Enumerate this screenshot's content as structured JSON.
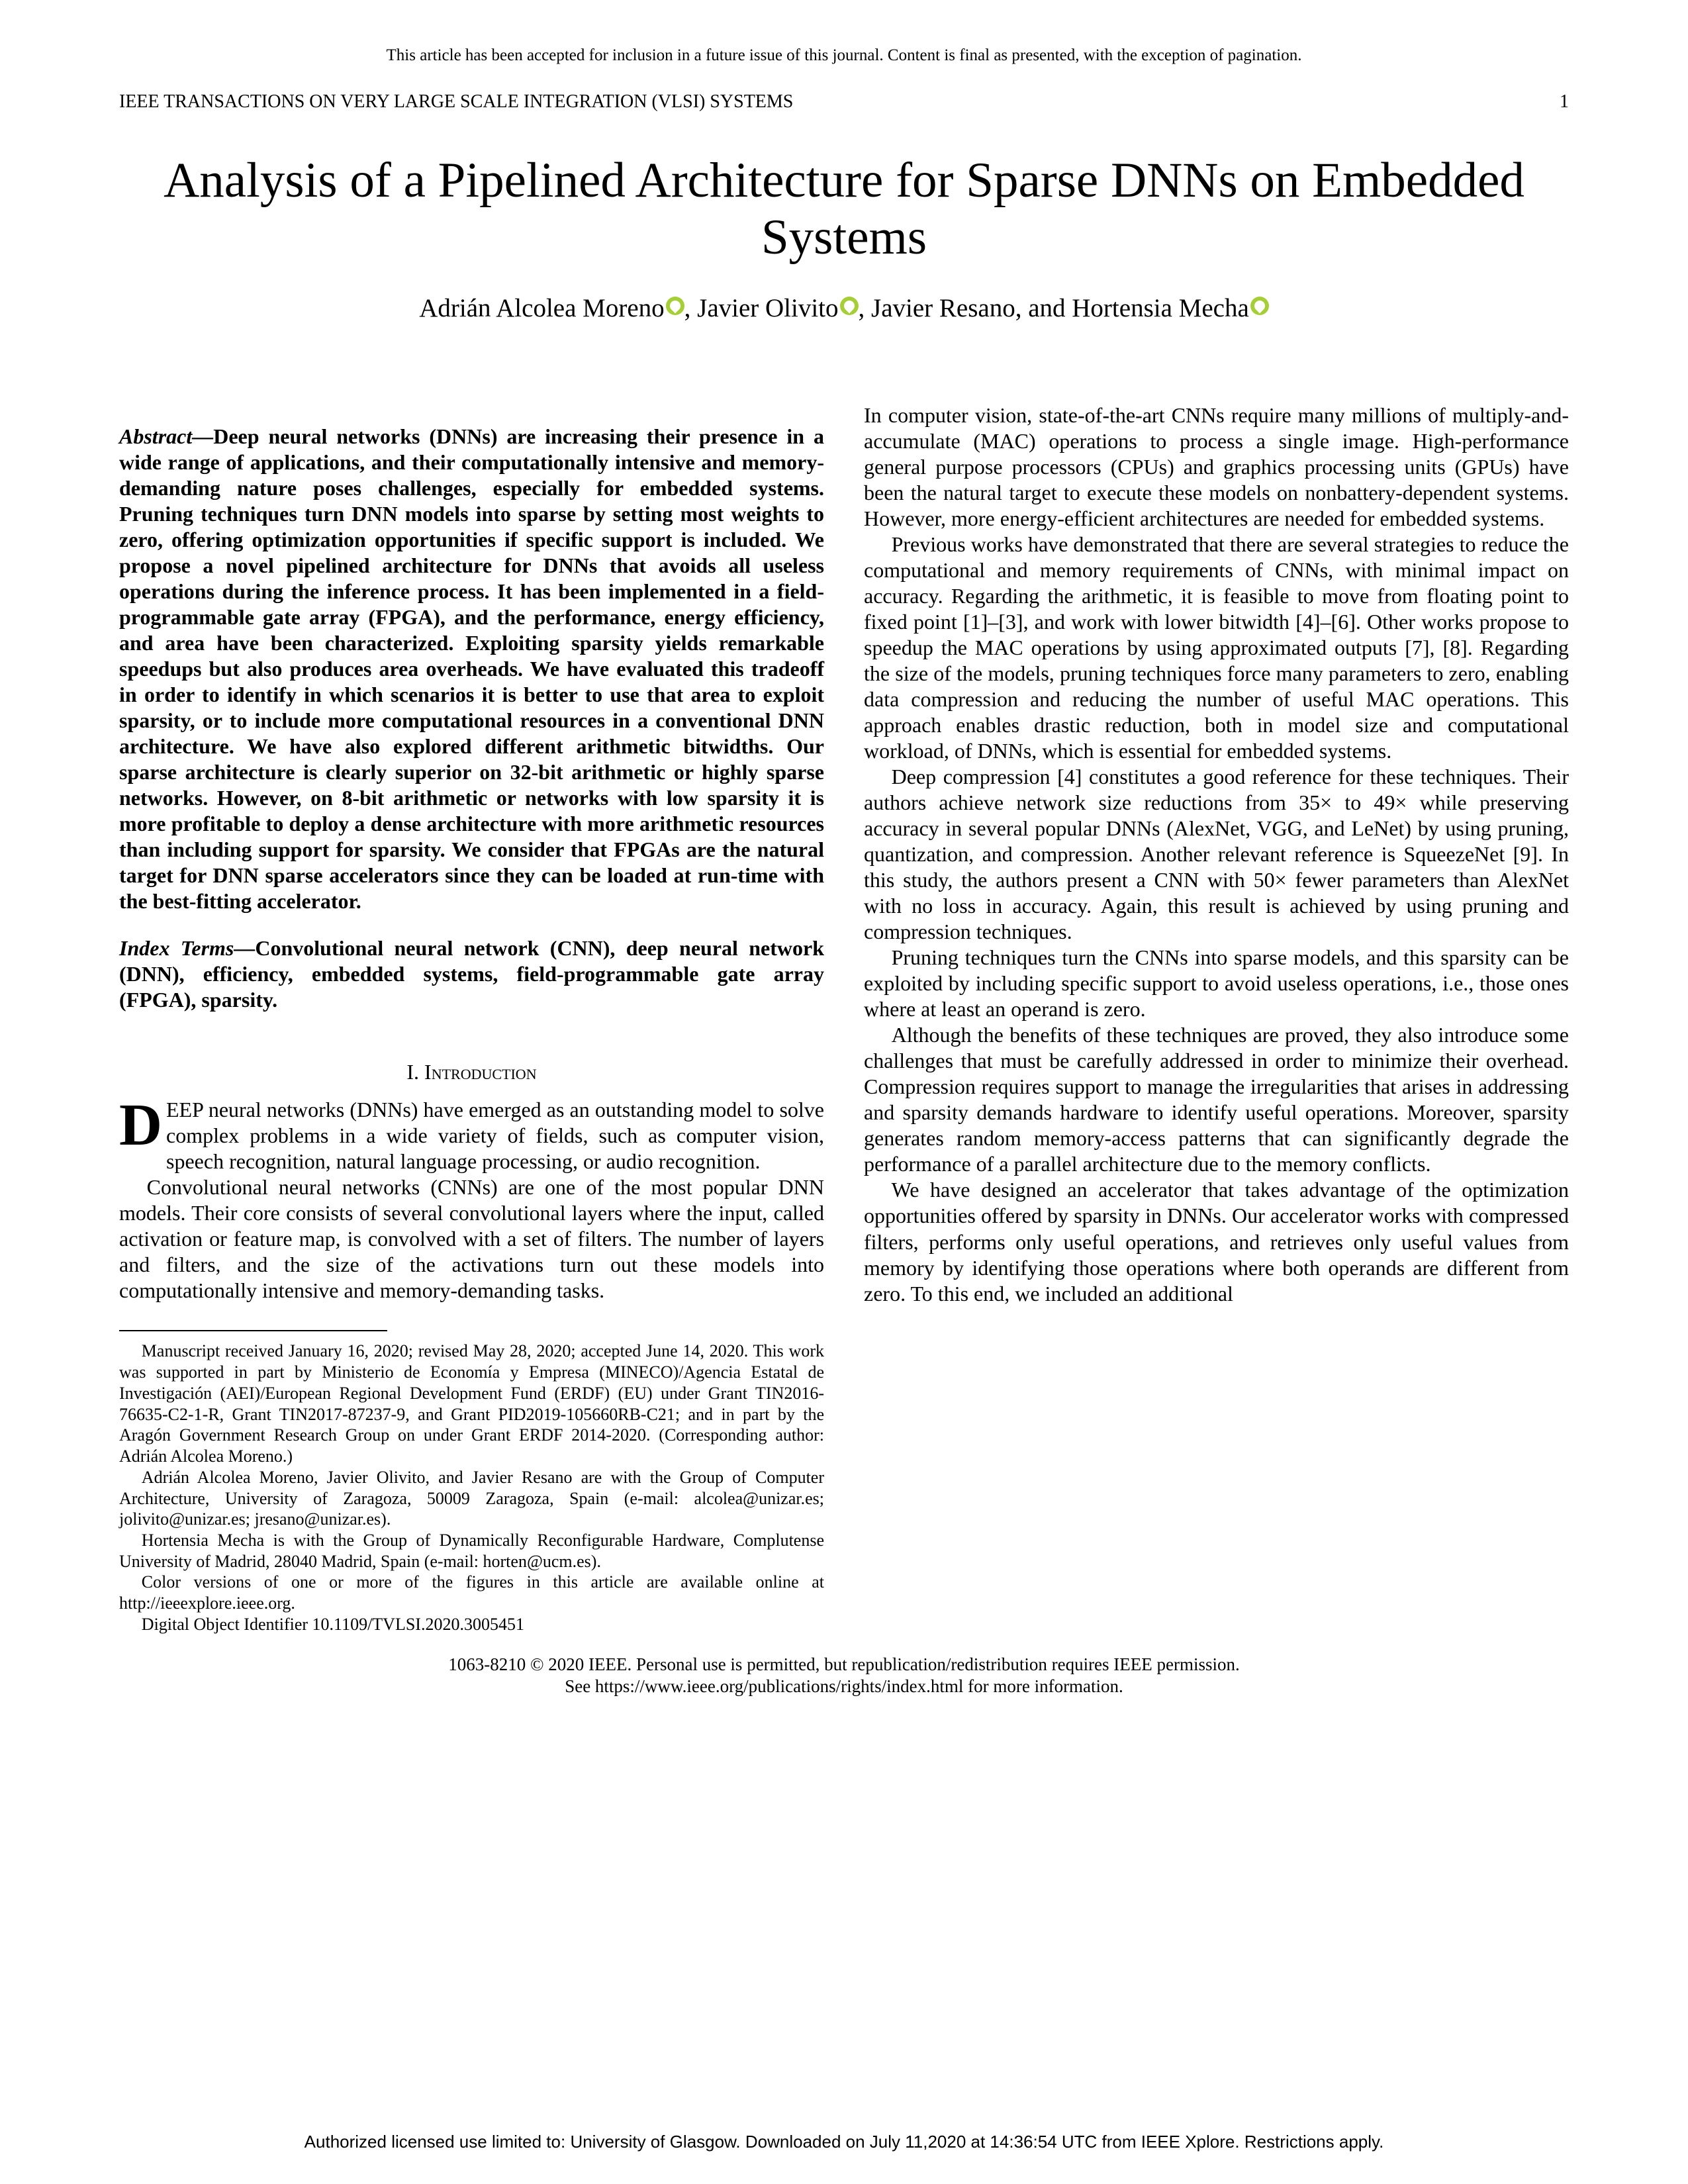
{
  "acceptance_notice": "This article has been accepted for inclusion in a future issue of this journal. Content is final as presented, with the exception of pagination.",
  "running_head": "IEEE TRANSACTIONS ON VERY LARGE SCALE INTEGRATION (VLSI) SYSTEMS",
  "page_number": "1",
  "title": "Analysis of a Pipelined Architecture for Sparse DNNs on Embedded Systems",
  "authors": {
    "a1": "Adrián Alcolea Moreno",
    "a2": "Javier Olivito",
    "a3": "Javier Resano, and Hortensia Mecha"
  },
  "abstract_label": "Abstract—",
  "abstract_text": "Deep neural networks (DNNs) are increasing their presence in a wide range of applications, and their computationally intensive and memory-demanding nature poses challenges, especially for embedded systems. Pruning techniques turn DNN models into sparse by setting most weights to zero, offering optimization opportunities if specific support is included. We propose a novel pipelined architecture for DNNs that avoids all useless operations during the inference process. It has been implemented in a field-programmable gate array (FPGA), and the performance, energy efficiency, and area have been characterized. Exploiting sparsity yields remarkable speedups but also produces area overheads. We have evaluated this tradeoff in order to identify in which scenarios it is better to use that area to exploit sparsity, or to include more computational resources in a conventional DNN architecture. We have also explored different arithmetic bitwidths. Our sparse architecture is clearly superior on 32-bit arithmetic or highly sparse networks. However, on 8-bit arithmetic or networks with low sparsity it is more profitable to deploy a dense architecture with more arithmetic resources than including support for sparsity. We consider that FPGAs are the natural target for DNN sparse accelerators since they can be loaded at run-time with the best-fitting accelerator.",
  "index_terms_label": "Index Terms—",
  "index_terms_text": "Convolutional neural network (CNN), deep neural network (DNN), efficiency, embedded systems, field-programmable gate array (FPGA), sparsity.",
  "section1_heading": "I. Introduction",
  "col1_intro_first": "EEP neural networks (DNNs) have emerged as an outstanding model to solve complex problems in a wide variety of fields, such as computer vision, speech recognition, natural language processing, or audio recognition.",
  "col1_p2": "Convolutional neural networks (CNNs) are one of the most popular DNN models. Their core consists of several convolutional layers where the input, called activation or feature map, is convolved with a set of filters. The number of layers and filters, and the size of the activations turn out these models into computationally intensive and memory-demanding tasks.",
  "footnotes": {
    "f1": "Manuscript received January 16, 2020; revised May 28, 2020; accepted June 14, 2020. This work was supported in part by Ministerio de Economía y Empresa (MINECO)/Agencia Estatal de Investigación (AEI)/European Regional Development Fund (ERDF) (EU) under Grant TIN2016-76635-C2-1-R, Grant TIN2017-87237-9, and Grant PID2019-105660RB-C21; and in part by the Aragón Government Research Group on under Grant ERDF 2014-2020. (Corresponding author: Adrián Alcolea Moreno.)",
    "f2": "Adrián Alcolea Moreno, Javier Olivito, and Javier Resano are with the Group of Computer Architecture, University of Zaragoza, 50009 Zaragoza, Spain (e-mail: alcolea@unizar.es; jolivito@unizar.es; jresano@unizar.es).",
    "f3": "Hortensia Mecha is with the Group of Dynamically Reconfigurable Hardware, Complutense University of Madrid, 28040 Madrid, Spain (e-mail: horten@ucm.es).",
    "f4": "Color versions of one or more of the figures in this article are available online at http://ieeexplore.ieee.org.",
    "f5": "Digital Object Identifier 10.1109/TVLSI.2020.3005451"
  },
  "col2_p1": "In computer vision, state-of-the-art CNNs require many millions of multiply-and-accumulate (MAC) operations to process a single image. High-performance general purpose processors (CPUs) and graphics processing units (GPUs) have been the natural target to execute these models on nonbattery-dependent systems. However, more energy-efficient architectures are needed for embedded systems.",
  "col2_p2": "Previous works have demonstrated that there are several strategies to reduce the computational and memory requirements of CNNs, with minimal impact on accuracy. Regarding the arithmetic, it is feasible to move from floating point to fixed point [1]–[3], and work with lower bitwidth [4]–[6]. Other works propose to speedup the MAC operations by using approximated outputs [7], [8]. Regarding the size of the models, pruning techniques force many parameters to zero, enabling data compression and reducing the number of useful MAC operations. This approach enables drastic reduction, both in model size and computational workload, of DNNs, which is essential for embedded systems.",
  "col2_p3": "Deep compression [4] constitutes a good reference for these techniques. Their authors achieve network size reductions from 35× to 49× while preserving accuracy in several popular DNNs (AlexNet, VGG, and LeNet) by using pruning, quantization, and compression. Another relevant reference is SqueezeNet [9]. In this study, the authors present a CNN with 50× fewer parameters than AlexNet with no loss in accuracy. Again, this result is achieved by using pruning and compression techniques.",
  "col2_p4": "Pruning techniques turn the CNNs into sparse models, and this sparsity can be exploited by including specific support to avoid useless operations, i.e., those ones where at least an operand is zero.",
  "col2_p5": "Although the benefits of these techniques are proved, they also introduce some challenges that must be carefully addressed in order to minimize their overhead. Compression requires support to manage the irregularities that arises in addressing and sparsity demands hardware to identify useful operations. Moreover, sparsity generates random memory-access patterns that can significantly degrade the performance of a parallel architecture due to the memory conflicts.",
  "col2_p6": "We have designed an accelerator that takes advantage of the optimization opportunities offered by sparsity in DNNs. Our accelerator works with compressed filters, performs only useful operations, and retrieves only useful values from memory by identifying those operations where both operands are different from zero. To this end, we included an additional",
  "copyright_line1": "1063-8210 © 2020 IEEE. Personal use is permitted, but republication/redistribution requires IEEE permission.",
  "copyright_line2": "See https://www.ieee.org/publications/rights/index.html for more information.",
  "license_footer": "Authorized licensed use limited to: University of Glasgow. Downloaded on July 11,2020 at 14:36:54 UTC from IEEE Xplore.  Restrictions apply."
}
